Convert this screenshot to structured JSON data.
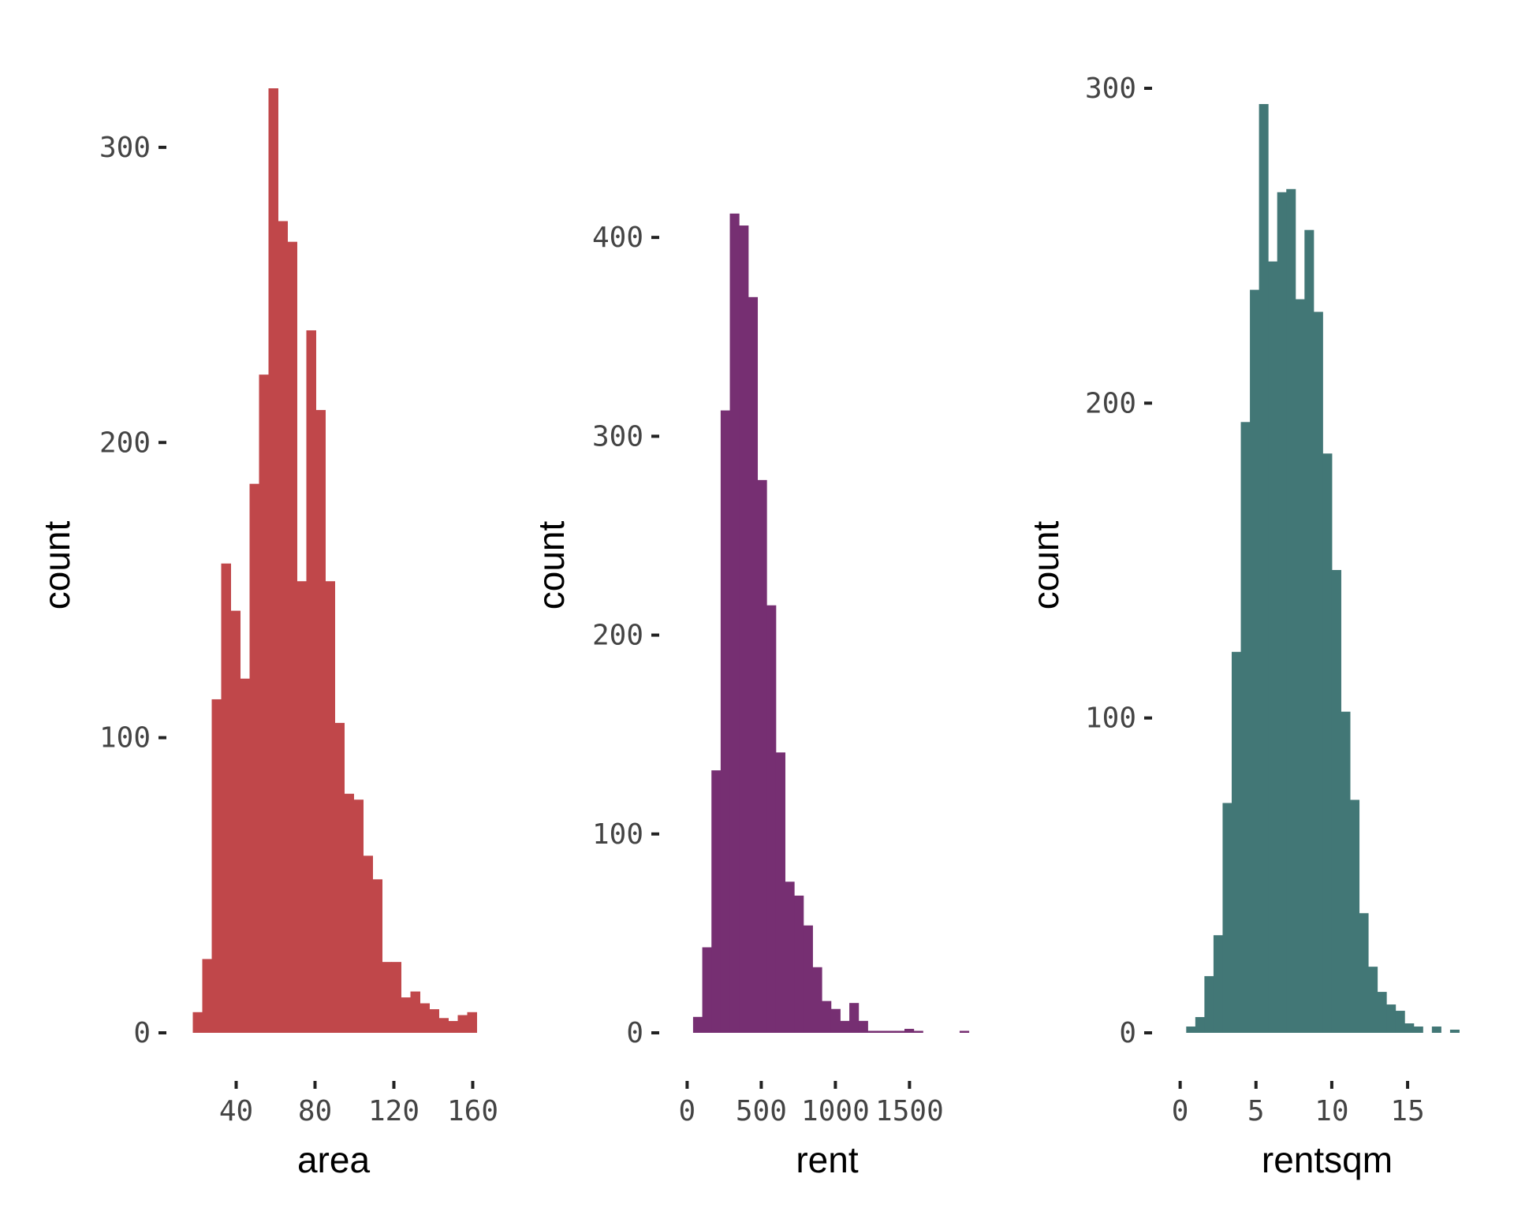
{
  "chart_data": [
    {
      "type": "bar",
      "subtype": "histogram",
      "xlabel": "area",
      "ylabel": "count",
      "color": "#c0474a",
      "xlim": [
        15,
        165
      ],
      "ylim": [
        0,
        320
      ],
      "xticks": [
        40,
        80,
        120,
        160
      ],
      "yticks": [
        0,
        100,
        200,
        300
      ],
      "bins": {
        "start": 18,
        "width": 4.8,
        "counts": [
          7,
          25,
          113,
          159,
          143,
          120,
          186,
          223,
          320,
          275,
          268,
          153,
          238,
          211,
          153,
          105,
          81,
          79,
          60,
          52,
          24,
          24,
          12,
          14,
          10,
          8,
          5,
          4,
          6,
          7
        ]
      },
      "grid": false,
      "legend": "none"
    },
    {
      "type": "bar",
      "subtype": "histogram",
      "xlabel": "rent",
      "ylabel": "count",
      "color": "#762f72",
      "xlim": [
        -50,
        1950
      ],
      "ylim": [
        0,
        475
      ],
      "xticks": [
        0,
        500,
        1000,
        1500
      ],
      "yticks": [
        0,
        100,
        200,
        300,
        400
      ],
      "bins": {
        "start": 40,
        "width": 62,
        "counts": [
          8,
          43,
          132,
          313,
          412,
          406,
          370,
          278,
          215,
          141,
          76,
          69,
          54,
          33,
          16,
          12,
          6,
          15,
          6,
          1,
          1,
          1,
          1,
          2,
          1,
          0,
          0,
          0,
          0,
          1
        ]
      },
      "grid": false,
      "legend": "none"
    },
    {
      "type": "bar",
      "subtype": "histogram",
      "xlabel": "rentsqm",
      "ylabel": "count",
      "color": "#427776",
      "xlim": [
        -0.5,
        19
      ],
      "ylim": [
        0,
        300
      ],
      "xticks": [
        0,
        5,
        10,
        15
      ],
      "yticks": [
        0,
        100,
        200,
        300
      ],
      "bins": {
        "start": 0.4,
        "width": 0.6,
        "counts": [
          2,
          5,
          18,
          31,
          73,
          121,
          194,
          236,
          295,
          245,
          267,
          268,
          233,
          255,
          229,
          184,
          147,
          102,
          74,
          38,
          21,
          13,
          9,
          7,
          3,
          2,
          0,
          2,
          0,
          1
        ]
      },
      "grid": false,
      "legend": "none"
    }
  ]
}
